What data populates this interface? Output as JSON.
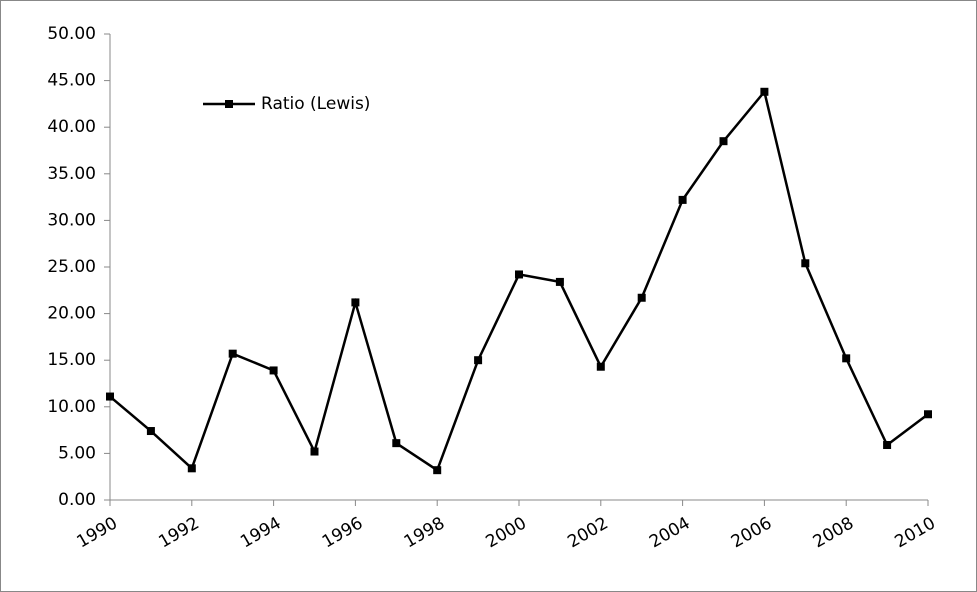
{
  "chart_data": {
    "type": "line",
    "x": [
      1990,
      1991,
      1992,
      1993,
      1994,
      1995,
      1996,
      1997,
      1998,
      1999,
      2000,
      2001,
      2002,
      2003,
      2004,
      2005,
      2006,
      2007,
      2008,
      2009,
      2010
    ],
    "series": [
      {
        "name": "Ratio (Lewis)",
        "color": "#000000",
        "values": [
          11.1,
          7.4,
          3.4,
          15.7,
          13.9,
          5.2,
          21.2,
          6.1,
          3.2,
          15.0,
          24.2,
          23.4,
          14.3,
          21.7,
          32.2,
          38.5,
          43.8,
          25.4,
          15.2,
          5.9,
          9.2
        ]
      }
    ],
    "xlim": [
      1990,
      2010
    ],
    "xticks": [
      1990,
      1992,
      1994,
      1996,
      1998,
      2000,
      2002,
      2004,
      2006,
      2008,
      2010
    ],
    "ylim": [
      0,
      50
    ],
    "yticks": [
      {
        "value": 0,
        "label": "0.00"
      },
      {
        "value": 5,
        "label": "5.00"
      },
      {
        "value": 10,
        "label": "10.00"
      },
      {
        "value": 15,
        "label": "15.00"
      },
      {
        "value": 20,
        "label": "20.00"
      },
      {
        "value": 25,
        "label": "25.00"
      },
      {
        "value": 30,
        "label": "30.00"
      },
      {
        "value": 35,
        "label": "35.00"
      },
      {
        "value": 40,
        "label": "40.00"
      },
      {
        "value": 45,
        "label": "45.00"
      },
      {
        "value": 50,
        "label": "50.00"
      }
    ],
    "grid": false,
    "legend": "top-left"
  }
}
